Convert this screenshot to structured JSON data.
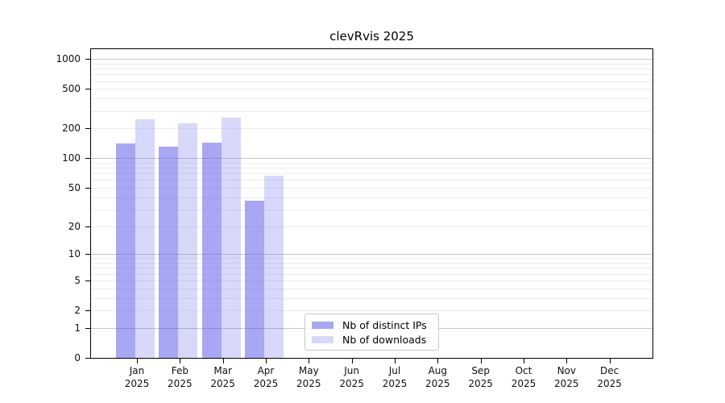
{
  "figure": {
    "title": "clevRvis 2025"
  },
  "chart_data": {
    "type": "bar",
    "title": "clevRvis 2025",
    "y_scale": "logarithmic (log10(1+y), symlog-like with 0 baseline)",
    "grid": "horizontal major + minor log gridlines",
    "legend_position": "inside axes, lower center-left",
    "categories": [
      "Jan 2025",
      "Feb 2025",
      "Mar 2025",
      "Apr 2025",
      "May 2025",
      "Jun 2025",
      "Jul 2025",
      "Aug 2025",
      "Sep 2025",
      "Oct 2025",
      "Nov 2025",
      "Dec 2025"
    ],
    "x_tick_month_labels": [
      "Jan",
      "Feb",
      "Mar",
      "Apr",
      "May",
      "Jun",
      "Jul",
      "Aug",
      "Sep",
      "Oct",
      "Nov",
      "Dec"
    ],
    "x_tick_year_label": "2025",
    "y_ticks": [
      0,
      1,
      2,
      5,
      10,
      20,
      50,
      100,
      200,
      500,
      1000
    ],
    "ylim": [
      0,
      1300
    ],
    "series": [
      {
        "name": "Nb of distinct IPs",
        "color": "#a9a9f4",
        "color_rgba": "rgba(98,98,235,0.56)",
        "values": [
          140,
          130,
          145,
          37,
          null,
          null,
          null,
          null,
          null,
          null,
          null,
          null
        ]
      },
      {
        "name": "Nb of downloads",
        "color": "#d8d8f8",
        "color_rgba": "rgba(98,98,235,0.25)",
        "values": [
          250,
          225,
          255,
          67,
          null,
          null,
          null,
          null,
          null,
          null,
          null,
          null
        ]
      }
    ],
    "colors": {
      "major_gridline": "#c6c6c6",
      "minor_gridline": "#ececec",
      "axis": "#000000"
    }
  }
}
